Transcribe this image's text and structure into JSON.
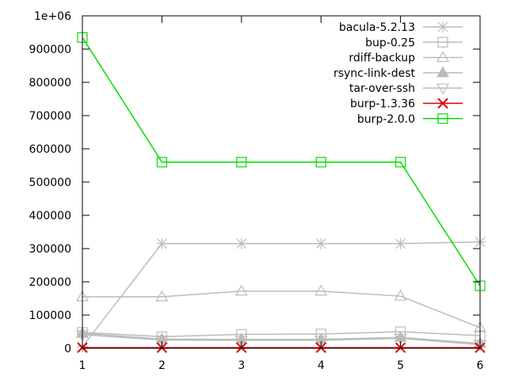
{
  "chart_data": {
    "type": "line",
    "title": "",
    "xlabel": "",
    "ylabel": "",
    "x": [
      1,
      2,
      3,
      4,
      5,
      6
    ],
    "xlim": [
      1,
      6
    ],
    "ylim": [
      0,
      1000000
    ],
    "x_ticks": [
      "1",
      "2",
      "3",
      "4",
      "5",
      "6"
    ],
    "y_ticks": [
      {
        "value": 0,
        "label": "0"
      },
      {
        "value": 100000,
        "label": "100000"
      },
      {
        "value": 200000,
        "label": "200000"
      },
      {
        "value": 300000,
        "label": "300000"
      },
      {
        "value": 400000,
        "label": "400000"
      },
      {
        "value": 500000,
        "label": "500000"
      },
      {
        "value": 600000,
        "label": "600000"
      },
      {
        "value": 700000,
        "label": "700000"
      },
      {
        "value": 800000,
        "label": "800000"
      },
      {
        "value": 900000,
        "label": "900000"
      },
      {
        "value": 1000000,
        "label": "1e+06"
      }
    ],
    "grid": false,
    "legend_position": "top-right",
    "series": [
      {
        "name": "bacula-5.2.13",
        "marker": "star",
        "color": "#bbbbbb",
        "values": [
          5000,
          315000,
          315000,
          315000,
          315000,
          320000
        ]
      },
      {
        "name": "bup-0.25",
        "marker": "square",
        "color": "#bbbbbb",
        "values": [
          48000,
          35000,
          42000,
          43000,
          50000,
          38000
        ]
      },
      {
        "name": "rdiff-backup",
        "marker": "triangle",
        "color": "#bbbbbb",
        "values": [
          155000,
          155000,
          172000,
          172000,
          157000,
          62000
        ]
      },
      {
        "name": "rsync-link-dest",
        "marker": "filled-triangle",
        "color": "#bbbbbb",
        "values": [
          45000,
          28000,
          27000,
          27000,
          33000,
          15000
        ]
      },
      {
        "name": "tar-over-ssh",
        "marker": "triangle-down",
        "color": "#bbbbbb",
        "values": [
          41000,
          25000,
          24000,
          24000,
          30000,
          11000
        ]
      },
      {
        "name": "burp-1.3.36",
        "marker": "x",
        "color": "#dd0000",
        "values": [
          2000,
          2000,
          2000,
          2000,
          2000,
          2000
        ]
      },
      {
        "name": "burp-2.0.0",
        "marker": "square",
        "color": "#00dd00",
        "values": [
          935000,
          560000,
          560000,
          560000,
          560000,
          188000
        ]
      }
    ]
  }
}
